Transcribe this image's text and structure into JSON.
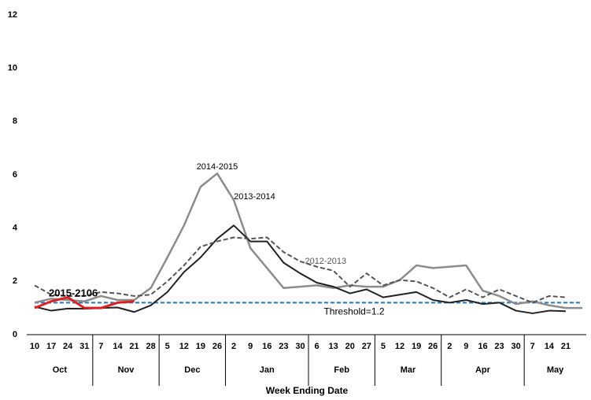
{
  "chart_data": {
    "type": "line",
    "x_label": "Week Ending Date",
    "categories": [
      "10",
      "17",
      "24",
      "31",
      "7",
      "14",
      "21",
      "28",
      "5",
      "12",
      "19",
      "26",
      "2",
      "9",
      "16",
      "23",
      "30",
      "6",
      "13",
      "20",
      "27",
      "5",
      "12",
      "19",
      "26",
      "2",
      "9",
      "16",
      "23",
      "30",
      "7",
      "14",
      "21",
      null
    ],
    "months": [
      "Oct",
      "Nov",
      "Dec",
      "Jan",
      "Feb",
      "Mar",
      "Apr",
      "May"
    ],
    "ylim": [
      0,
      12
    ],
    "yticks": [
      0,
      2,
      4,
      6,
      8,
      10,
      12
    ],
    "series": [
      {
        "name": "2014-2015",
        "color": "#8c8c8c",
        "dash": false,
        "width": 2.5,
        "values": [
          1.2,
          1.35,
          1.3,
          1.25,
          1.45,
          1.3,
          1.3,
          1.75,
          2.9,
          4.1,
          5.55,
          6.05,
          5.05,
          3.25,
          2.5,
          1.75,
          1.8,
          1.85,
          1.75,
          1.85,
          1.8,
          1.8,
          2.05,
          2.6,
          2.5,
          2.55,
          2.6,
          1.65,
          1.45,
          1.15,
          1.25,
          1.1,
          1.0,
          1.0
        ]
      },
      {
        "name": "2013-2014",
        "color": "#222222",
        "dash": false,
        "width": 2,
        "values": [
          1.05,
          0.9,
          0.98,
          0.97,
          1.0,
          1.02,
          0.85,
          1.1,
          1.6,
          2.35,
          2.9,
          3.6,
          4.1,
          3.5,
          3.5,
          2.7,
          2.3,
          1.95,
          1.8,
          1.55,
          1.7,
          1.4,
          1.5,
          1.6,
          1.3,
          1.2,
          1.3,
          1.15,
          1.2,
          0.9,
          0.8,
          0.9,
          0.88,
          null
        ]
      },
      {
        "name": "2012-2013",
        "color": "#555555",
        "dash": true,
        "width": 2,
        "values": [
          1.85,
          1.5,
          1.45,
          1.45,
          1.6,
          1.55,
          1.45,
          1.5,
          2.0,
          2.6,
          3.3,
          3.5,
          3.65,
          3.6,
          3.65,
          3.1,
          2.75,
          2.55,
          2.4,
          1.8,
          2.3,
          1.85,
          2.05,
          2.0,
          1.75,
          1.4,
          1.7,
          1.4,
          1.7,
          1.45,
          1.2,
          1.45,
          1.4,
          null
        ]
      },
      {
        "name": "2015-2106",
        "color": "#e02020",
        "dash": false,
        "width": 3,
        "values": [
          1.0,
          1.25,
          1.4,
          1.0,
          1.0,
          1.2,
          1.25,
          null,
          null,
          null,
          null,
          null,
          null,
          null,
          null,
          null,
          null,
          null,
          null,
          null,
          null,
          null,
          null,
          null,
          null,
          null,
          null,
          null,
          null,
          null,
          null,
          null,
          null,
          null
        ]
      }
    ],
    "threshold": {
      "value": 1.2,
      "label": "Threshold=1.2",
      "color": "#1f78c8"
    }
  }
}
